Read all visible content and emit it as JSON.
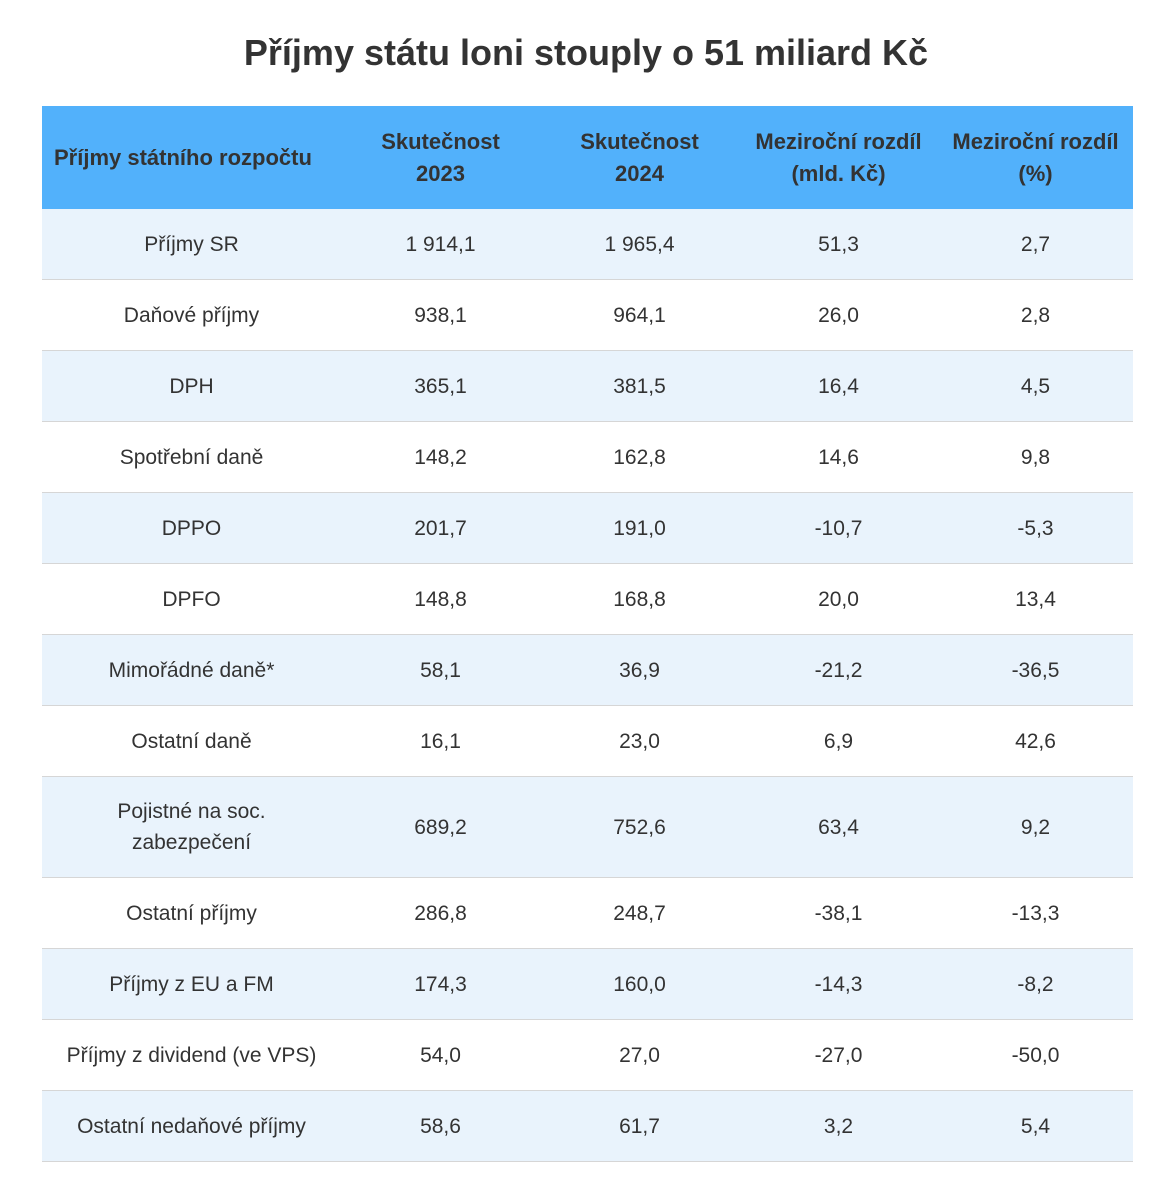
{
  "chart_data": {
    "type": "table",
    "title": "Příjmy státu loni stouply o 51 miliard Kč",
    "columns": [
      {
        "key": "name",
        "lines": [
          "Příjmy státního rozpočtu"
        ]
      },
      {
        "key": "y2023",
        "lines": [
          "Skutečnost",
          "2023"
        ]
      },
      {
        "key": "y2024",
        "lines": [
          "Skutečnost",
          "2024"
        ]
      },
      {
        "key": "diff_abs",
        "lines": [
          "Meziroční rozdíl",
          "(mld. Kč)"
        ]
      },
      {
        "key": "diff_pct",
        "lines": [
          "Meziroční rozdíl",
          "(%)"
        ]
      }
    ],
    "rows": [
      {
        "name": "Příjmy SR",
        "y2023": "1 914,1",
        "y2024": "1 965,4",
        "diff_abs": "51,3",
        "diff_pct": "2,7"
      },
      {
        "name": "Daňové příjmy",
        "y2023": "938,1",
        "y2024": "964,1",
        "diff_abs": "26,0",
        "diff_pct": "2,8"
      },
      {
        "name": "DPH",
        "y2023": "365,1",
        "y2024": "381,5",
        "diff_abs": "16,4",
        "diff_pct": "4,5"
      },
      {
        "name": "Spotřební daně",
        "y2023": "148,2",
        "y2024": "162,8",
        "diff_abs": "14,6",
        "diff_pct": "9,8"
      },
      {
        "name": "DPPO",
        "y2023": "201,7",
        "y2024": "191,0",
        "diff_abs": "-10,7",
        "diff_pct": "-5,3"
      },
      {
        "name": "DPFO",
        "y2023": "148,8",
        "y2024": "168,8",
        "diff_abs": "20,0",
        "diff_pct": "13,4"
      },
      {
        "name": "Mimořádné daně*",
        "y2023": "58,1",
        "y2024": "36,9",
        "diff_abs": "-21,2",
        "diff_pct": "-36,5"
      },
      {
        "name": "Ostatní daně",
        "y2023": "16,1",
        "y2024": "23,0",
        "diff_abs": "6,9",
        "diff_pct": "42,6"
      },
      {
        "name": "Pojistné na soc. zabezpečení",
        "name_lines": [
          "Pojistné na soc.",
          "zabezpečení"
        ],
        "y2023": "689,2",
        "y2024": "752,6",
        "diff_abs": "63,4",
        "diff_pct": "9,2"
      },
      {
        "name": "Ostatní příjmy",
        "y2023": "286,8",
        "y2024": "248,7",
        "diff_abs": "-38,1",
        "diff_pct": "-13,3"
      },
      {
        "name": "Příjmy z EU a FM",
        "y2023": "174,3",
        "y2024": "160,0",
        "diff_abs": "-14,3",
        "diff_pct": "-8,2"
      },
      {
        "name": "Příjmy z dividend (ve VPS)",
        "y2023": "54,0",
        "y2024": "27,0",
        "diff_abs": "-27,0",
        "diff_pct": "-50,0"
      },
      {
        "name": "Ostatní nedaňové příjmy",
        "y2023": "58,6",
        "y2024": "61,7",
        "diff_abs": "3,2",
        "diff_pct": "5,4"
      }
    ]
  },
  "colors": {
    "header_bg": "#52b1fb",
    "row_odd_bg": "#e9f3fc",
    "row_even_bg": "#ffffff",
    "text": "#333333",
    "row_border": "#d6d6d6"
  }
}
